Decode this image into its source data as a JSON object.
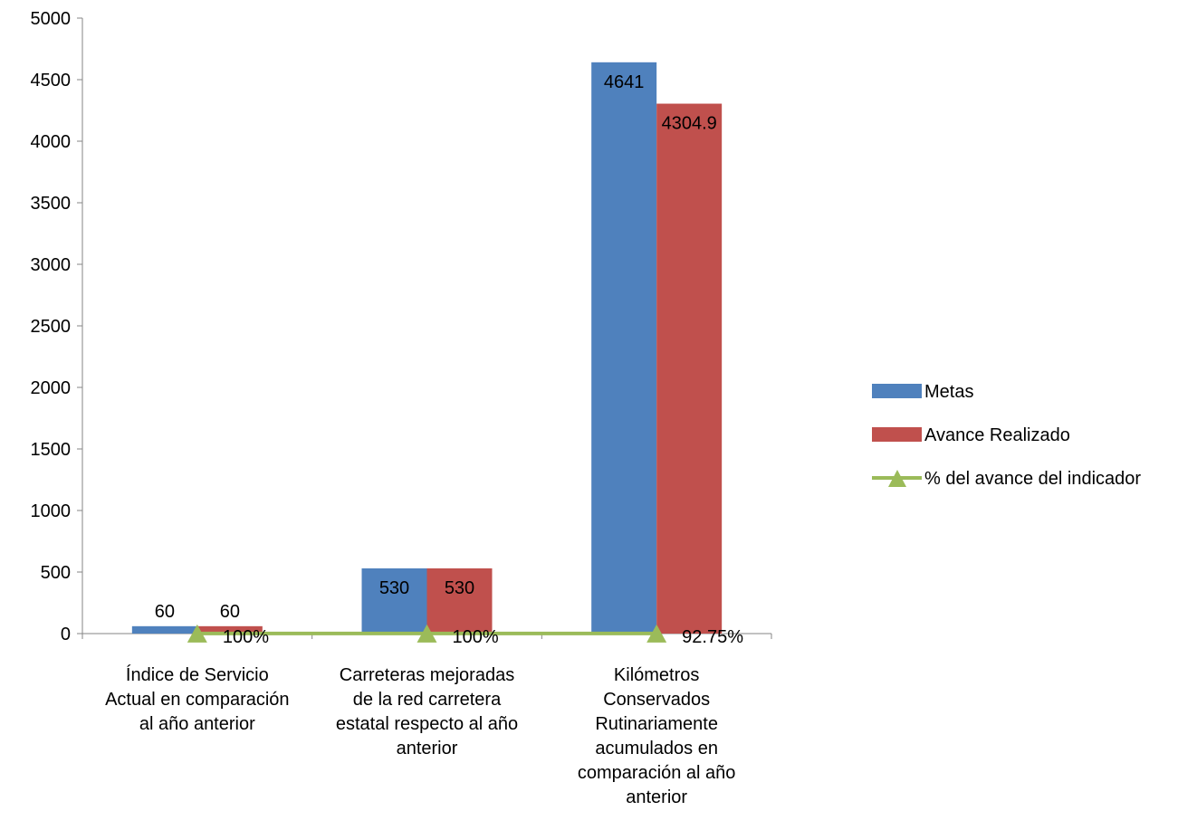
{
  "chart_data": {
    "type": "bar",
    "categories": [
      [
        "Índice de Servicio",
        "Actual en comparación",
        "al año anterior"
      ],
      [
        "Carreteras mejoradas",
        "de la red carretera",
        "estatal respecto al año",
        "anterior"
      ],
      [
        "Kilómetros",
        "Conservados",
        "Rutinariamente",
        "acumulados en",
        "comparación  al año",
        "anterior"
      ]
    ],
    "series": [
      {
        "name": "Metas",
        "kind": "bar",
        "color": "#4f81bd",
        "values": [
          60,
          530,
          4641
        ],
        "labels": [
          "60",
          "530",
          "4641"
        ]
      },
      {
        "name": "Avance Realizado",
        "kind": "bar",
        "color": "#c0504d",
        "values": [
          60,
          530,
          4304.9
        ],
        "labels": [
          "60",
          "530",
          "4304.9"
        ]
      },
      {
        "name": "% del avance del indicador",
        "kind": "line",
        "color": "#9bbb59",
        "values": [
          1,
          1,
          0.9275
        ],
        "labels": [
          "100%",
          "100%",
          "92.75%"
        ]
      }
    ],
    "ylim": [
      0,
      5000
    ],
    "yticks": [
      "0",
      "500",
      "1000",
      "1500",
      "2000",
      "2500",
      "3000",
      "3500",
      "4000",
      "4500",
      "5000"
    ],
    "legend": "right",
    "grid": false,
    "title": "",
    "xlabel": "",
    "ylabel": ""
  }
}
